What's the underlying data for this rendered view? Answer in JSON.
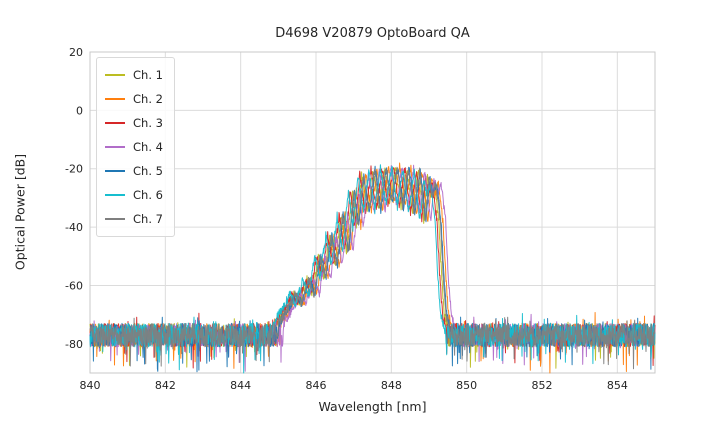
{
  "chart_data": {
    "type": "line",
    "title": "D4698 V20879 OptoBoard QA",
    "xlabel": "Wavelength [nm]",
    "ylabel": "Optical Power [dB]",
    "xlim": [
      840,
      855
    ],
    "ylim": [
      -90,
      20
    ],
    "xticks": [
      840,
      842,
      844,
      846,
      848,
      850,
      852,
      854
    ],
    "yticks": [
      20,
      0,
      -20,
      -40,
      -60,
      -80
    ],
    "grid": true,
    "legend_position": "upper-left",
    "noise": {
      "floor_db": -77,
      "half_band_db": 4,
      "spike_prob": 0.055,
      "spike_depth_db": 10,
      "signal_jitter_db": 1.5
    },
    "envelope_nm_db": [
      [
        845.0,
        -73
      ],
      [
        845.25,
        -68
      ],
      [
        845.45,
        -63
      ],
      [
        845.6,
        -66
      ],
      [
        845.8,
        -58
      ],
      [
        845.95,
        -63
      ],
      [
        846.1,
        -50
      ],
      [
        846.25,
        -57
      ],
      [
        846.4,
        -43
      ],
      [
        846.55,
        -53
      ],
      [
        846.7,
        -36
      ],
      [
        846.85,
        -48
      ],
      [
        847.0,
        -28
      ],
      [
        847.12,
        -40
      ],
      [
        847.25,
        -22
      ],
      [
        847.4,
        -35
      ],
      [
        847.55,
        -20.5
      ],
      [
        847.7,
        -34
      ],
      [
        847.85,
        -19.5
      ],
      [
        848.0,
        -32
      ],
      [
        848.15,
        -19.5
      ],
      [
        848.3,
        -33
      ],
      [
        848.45,
        -20
      ],
      [
        848.6,
        -35
      ],
      [
        848.75,
        -20.5
      ],
      [
        848.9,
        -38
      ],
      [
        849.0,
        -23
      ],
      [
        849.08,
        -29
      ],
      [
        849.18,
        -25
      ],
      [
        849.3,
        -38
      ],
      [
        849.38,
        -58
      ],
      [
        849.45,
        -70
      ],
      [
        849.55,
        -75
      ]
    ],
    "series": [
      {
        "name": "Ch. 1",
        "color": "#bcbd22",
        "wavelength_offset_nm": -0.04
      },
      {
        "name": "Ch. 2",
        "color": "#ff7f0e",
        "wavelength_offset_nm": 0.07
      },
      {
        "name": "Ch. 3",
        "color": "#d62728",
        "wavelength_offset_nm": -0.09
      },
      {
        "name": "Ch. 4",
        "color": "#b16dc9",
        "wavelength_offset_nm": 0.14
      },
      {
        "name": "Ch. 5",
        "color": "#1f77b4",
        "wavelength_offset_nm": 0.02
      },
      {
        "name": "Ch. 6",
        "color": "#17becf",
        "wavelength_offset_nm": -0.14
      },
      {
        "name": "Ch. 7",
        "color": "#7f7f7f",
        "wavelength_offset_nm": 0.0
      }
    ]
  }
}
